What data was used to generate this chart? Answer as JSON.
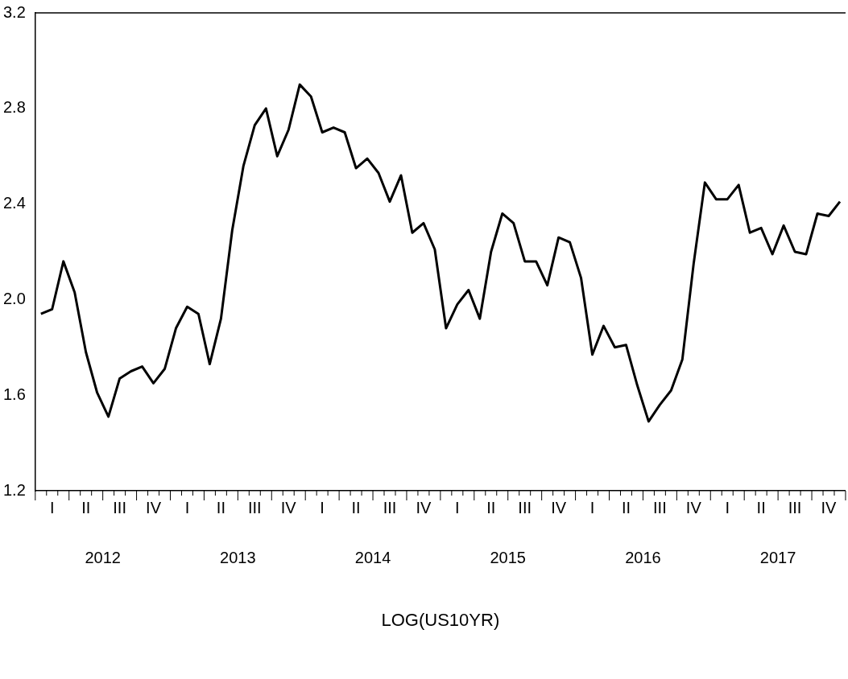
{
  "chart_data": {
    "type": "line",
    "annotations": [
      "2012",
      "2013",
      "2014",
      "2015",
      "2016",
      "2017",
      "LOG(US10YR)"
    ],
    "categories": [
      null,
      "I",
      null,
      null,
      "II",
      null,
      null,
      "III",
      null,
      null,
      "IV",
      null,
      null,
      "I",
      null,
      null,
      "II",
      null,
      null,
      "III",
      null,
      null,
      "IV",
      null,
      null,
      "I",
      null,
      null,
      "II",
      null,
      null,
      "III",
      null,
      null,
      "IV",
      null,
      null,
      "I",
      null,
      null,
      "II",
      null,
      null,
      "III",
      null,
      null,
      "IV",
      null,
      null,
      "I",
      null,
      null,
      "II",
      null,
      null,
      "III",
      null,
      null,
      "IV",
      null,
      null,
      "I",
      null,
      null,
      "II",
      null,
      null,
      "III",
      null,
      null,
      "IV",
      null
    ],
    "series": [
      {
        "color": "#000000",
        "values": [
          1.94,
          1.96,
          2.16,
          2.03,
          1.78,
          1.61,
          1.51,
          1.67,
          1.7,
          1.72,
          1.65,
          1.71,
          1.88,
          1.97,
          1.94,
          1.73,
          1.92,
          2.29,
          2.56,
          2.73,
          2.8,
          2.6,
          2.71,
          2.9,
          2.85,
          2.7,
          2.72,
          2.7,
          2.55,
          2.59,
          2.53,
          2.41,
          2.52,
          2.28,
          2.32,
          2.21,
          1.88,
          1.98,
          2.04,
          1.92,
          2.2,
          2.36,
          2.32,
          2.16,
          2.16,
          2.06,
          2.26,
          2.24,
          2.09,
          1.77,
          1.89,
          1.8,
          1.81,
          1.64,
          1.49,
          1.56,
          1.62,
          1.75,
          2.15,
          2.49,
          2.42,
          2.42,
          2.48,
          2.28,
          2.3,
          2.19,
          2.31,
          2.2,
          2.19,
          2.36,
          2.35,
          2.41
        ]
      }
    ],
    "ylim": [
      1.2,
      3.2
    ],
    "yticks": [
      1.2,
      1.6,
      {
        "value": 2.0,
        "label": "2.0"
      },
      2.4,
      2.8,
      3.2
    ],
    "grid": false,
    "legend": false,
    "marker": "none",
    "line_style": "solid"
  }
}
